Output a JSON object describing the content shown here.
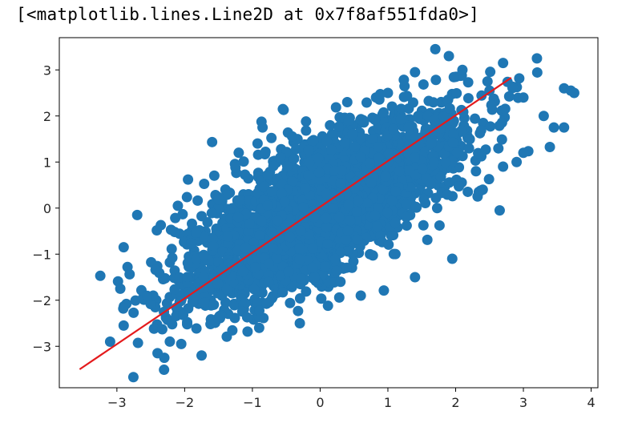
{
  "output": {
    "repr_text": "[<matplotlib.lines.Line2D at 0x7f8af551fda0>]"
  },
  "chart_data": {
    "type": "scatter",
    "title": "",
    "xlabel": "",
    "ylabel": "",
    "xlim": [
      -3.85,
      4.1
    ],
    "ylim": [
      -3.9,
      3.7
    ],
    "x_ticks": [
      -3,
      -2,
      -1,
      0,
      1,
      2,
      3,
      4
    ],
    "y_ticks": [
      -3,
      -2,
      -1,
      0,
      1,
      2,
      3
    ],
    "x_tick_labels": [
      "−3",
      "−2",
      "−1",
      "0",
      "1",
      "2",
      "3",
      "4"
    ],
    "y_tick_labels": [
      "−3",
      "−2",
      "−1",
      "0",
      "1",
      "2",
      "3"
    ],
    "grid": false,
    "colors": {
      "points": "#1f77b4",
      "fit_line": "#e41a1c"
    },
    "scatter": {
      "n_points": 3000,
      "correlation": 0.72,
      "x_std": 1.0,
      "y_std": 1.0
    },
    "fit_line": {
      "x": [
        -3.55,
        2.82
      ],
      "y": [
        -3.5,
        2.83
      ]
    },
    "notable_points": [
      {
        "x": -3.1,
        "y": -2.9
      },
      {
        "x": -2.7,
        "y": -0.15
      },
      {
        "x": -2.9,
        "y": -0.85
      },
      {
        "x": -2.95,
        "y": -1.75
      },
      {
        "x": -2.9,
        "y": -2.55
      },
      {
        "x": -2.4,
        "y": -3.15
      },
      {
        "x": -2.3,
        "y": -3.25
      },
      {
        "x": -2.05,
        "y": -2.95
      },
      {
        "x": -1.75,
        "y": -3.2
      },
      {
        "x": -2.1,
        "y": 0.05
      },
      {
        "x": -1.95,
        "y": 0.62
      },
      {
        "x": -1.25,
        "y": 0.88
      },
      {
        "x": -0.55,
        "y": 2.15
      },
      {
        "x": -0.85,
        "y": 1.75
      },
      {
        "x": 0.4,
        "y": 2.3
      },
      {
        "x": 1.0,
        "y": 2.5
      },
      {
        "x": 1.4,
        "y": 2.95
      },
      {
        "x": 1.7,
        "y": 3.45
      },
      {
        "x": 1.9,
        "y": 3.3
      },
      {
        "x": 2.1,
        "y": 3.0
      },
      {
        "x": 2.7,
        "y": 3.15
      },
      {
        "x": 3.2,
        "y": 3.25
      },
      {
        "x": 3.0,
        "y": 2.4
      },
      {
        "x": 2.5,
        "y": 2.55
      },
      {
        "x": 3.3,
        "y": 2.0
      },
      {
        "x": 3.45,
        "y": 1.75
      },
      {
        "x": 3.6,
        "y": 1.75
      },
      {
        "x": 3.6,
        "y": 2.6
      },
      {
        "x": 3.7,
        "y": 2.55
      },
      {
        "x": 3.75,
        "y": 2.5
      },
      {
        "x": 3.0,
        "y": 1.2
      },
      {
        "x": 2.9,
        "y": 1.0
      },
      {
        "x": 2.7,
        "y": 0.9
      },
      {
        "x": 2.4,
        "y": 0.4
      },
      {
        "x": 1.95,
        "y": -1.1
      },
      {
        "x": 1.4,
        "y": -1.5
      },
      {
        "x": 0.6,
        "y": -1.9
      },
      {
        "x": 0.3,
        "y": -1.6
      },
      {
        "x": -0.3,
        "y": -2.5
      },
      {
        "x": -0.9,
        "y": -2.6
      },
      {
        "x": 2.65,
        "y": -0.05
      },
      {
        "x": 2.3,
        "y": 0.8
      }
    ]
  }
}
